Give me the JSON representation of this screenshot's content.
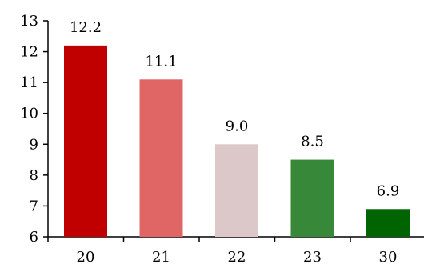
{
  "chart_data": {
    "type": "bar",
    "categories": [
      "20",
      "21",
      "22",
      "23",
      "30"
    ],
    "values": [
      12.2,
      11.1,
      9.0,
      8.5,
      6.9
    ],
    "data_labels": [
      "12.2",
      "11.1",
      "9.0",
      "8.5",
      "6.9"
    ],
    "colors": [
      "#c00000",
      "#e06666",
      "#dcc8c8",
      "#38883a",
      "#006400"
    ],
    "ylim": [
      6,
      13
    ],
    "yticks": [
      6,
      7,
      8,
      9,
      10,
      11,
      12,
      13
    ],
    "ytick_labels": [
      "6",
      "7",
      "8",
      "9",
      "10",
      "11",
      "12",
      "13"
    ],
    "grid": false,
    "legend": "none"
  }
}
